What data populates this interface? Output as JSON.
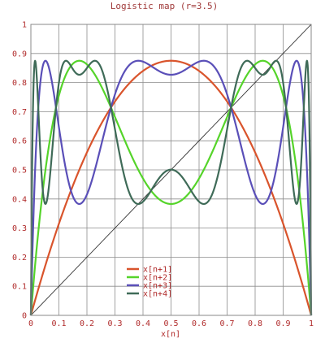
{
  "chart_data": {
    "type": "line",
    "title": "Logistic map (r=3.5)",
    "xlabel": "x[n]",
    "ylabel": "",
    "r": 3.5,
    "xlim": [
      0,
      1
    ],
    "ylim": [
      0,
      1
    ],
    "x_ticks": [
      "0",
      "0.1",
      "0.2",
      "0.3",
      "0.4",
      "0.5",
      "0.6",
      "0.7",
      "0.8",
      "0.9",
      "1"
    ],
    "y_ticks": [
      "0",
      "0.1",
      "0.2",
      "0.3",
      "0.4",
      "0.5",
      "0.6",
      "0.7",
      "0.8",
      "0.9",
      "1"
    ],
    "grid": true,
    "legend_position": "bottom-center",
    "series": [
      {
        "name": "x[n+1]",
        "iterations": 1,
        "color": "#d9542c"
      },
      {
        "name": "x[n+2]",
        "iterations": 2,
        "color": "#55d42a"
      },
      {
        "name": "x[n+3]",
        "iterations": 3,
        "color": "#5a4fb8"
      },
      {
        "name": "x[n+4]",
        "iterations": 4,
        "color": "#3f6b58"
      }
    ],
    "reference_line": {
      "label": "",
      "from": [
        0,
        0
      ],
      "to": [
        1,
        1
      ],
      "color": "#333333"
    }
  }
}
